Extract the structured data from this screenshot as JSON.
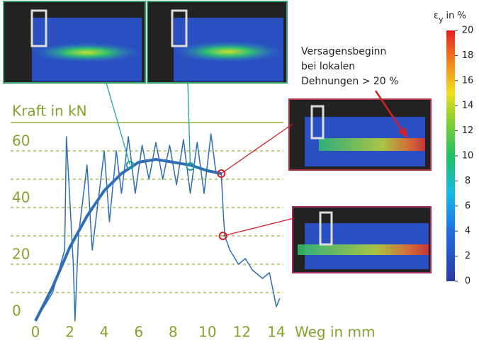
{
  "chart_data": {
    "type": "line",
    "y_label": "Kraft in kN",
    "x_label": "Weg in mm",
    "xlim": [
      0,
      14
    ],
    "xticks": [
      0,
      2,
      4,
      6,
      8,
      10,
      12,
      14
    ],
    "ylim": [
      0,
      70
    ],
    "yticks": [
      0,
      20,
      40,
      60
    ],
    "yminor": [
      10,
      30,
      50
    ],
    "grid": true,
    "series": [
      {
        "color": "#2f6db5",
        "width": 1.5,
        "x": [
          0,
          1,
          1.7,
          1.8,
          2.2,
          2.3,
          2.5,
          3,
          3.3,
          3.8,
          4,
          4.3,
          4.7,
          5,
          5.4,
          5.8,
          6.2,
          6.6,
          7,
          7.4,
          7.8,
          8.2,
          8.6,
          9,
          9.4,
          9.8,
          10.2,
          10.5,
          10.8,
          10.9,
          11,
          11.3,
          11.8,
          12.2,
          12.6,
          13.2,
          13.6,
          14,
          14.2
        ],
        "values": [
          0,
          10,
          25,
          65,
          20,
          0,
          30,
          55,
          25,
          50,
          60,
          35,
          60,
          45,
          65,
          45,
          62,
          50,
          63,
          50,
          62,
          48,
          64,
          45,
          63,
          45,
          66,
          52,
          52,
          40,
          30,
          25,
          20,
          22,
          18,
          15,
          17,
          5,
          8
        ]
      },
      {
        "color": "#2f6db5",
        "width": 4,
        "x": [
          0,
          1,
          2,
          3,
          4,
          5,
          6,
          7,
          8,
          9,
          10,
          10.8
        ],
        "values": [
          0,
          12,
          26,
          37,
          46,
          52,
          56,
          57,
          56,
          55,
          53,
          52
        ]
      }
    ],
    "markers": [
      {
        "x": 5.5,
        "y": 55,
        "color": "#1aa39a"
      },
      {
        "x": 9,
        "y": 54.5,
        "color": "#1aa39a"
      },
      {
        "x": 10.8,
        "y": 52,
        "color": "#d0202a"
      },
      {
        "x": 10.9,
        "y": 30,
        "color": "#d0202a"
      }
    ],
    "annotation": [
      "Versagensbeginn",
      "bei lokalen",
      "Dehnungen > 20 %"
    ],
    "colorbar": {
      "symbol": "ε",
      "subscript": "y",
      "unit": "in %",
      "clim": [
        0,
        20
      ],
      "ticks": [
        0,
        2,
        4,
        6,
        8,
        10,
        12,
        14,
        16,
        18,
        20
      ]
    }
  }
}
